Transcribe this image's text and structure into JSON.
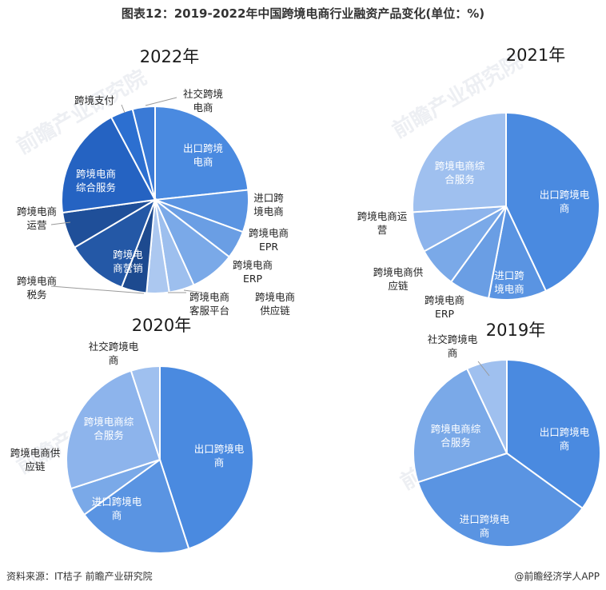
{
  "title": "图表12：2019-2022年中国跨境电商行业融资产品变化(单位：%)",
  "source": "资料来源：IT桔子 前瞻产业研究院",
  "brand": "@前瞻经济学人APP",
  "watermark": "前瞻产业研究院",
  "chart_data": [
    {
      "type": "pie",
      "title": "2022年",
      "slices": [
        {
          "label": [
            "出口跨境",
            "电商"
          ],
          "value": 24,
          "color": "#4a8ae0"
        },
        {
          "label": [
            "进口跨",
            "境电商"
          ],
          "value": 7.5,
          "color": "#5a94e2"
        },
        {
          "label": [
            "跨境电商",
            "EPR"
          ],
          "value": 5,
          "color": "#6a9ee4"
        },
        {
          "label": [
            "跨境电商",
            "ERP"
          ],
          "value": 8,
          "color": "#7aa9e8"
        },
        {
          "label": [
            "跨境电商",
            "供应链"
          ],
          "value": 4.5,
          "color": "#9dbfee"
        },
        {
          "label": [
            "跨境电商",
            "客服平台"
          ],
          "value": 4,
          "color": "#acc8f0"
        },
        {
          "label": [
            "跨境电商",
            "税务"
          ],
          "value": 4.5,
          "color": "#1d4a8f"
        },
        {
          "label": [
            "跨境电",
            "商营销"
          ],
          "value": 11,
          "color": "#2458a6"
        },
        {
          "label": [
            "跨境电商",
            "运营"
          ],
          "value": 6.5,
          "color": "#1f4f99"
        },
        {
          "label": [
            "跨境电商",
            "综合服务"
          ],
          "value": 20,
          "color": "#2563c2"
        },
        {
          "label": [
            "跨境支付"
          ],
          "value": 4,
          "color": "#2c6fd0"
        },
        {
          "label": [
            "社交跨境",
            "电商"
          ],
          "value": 4,
          "color": "#3a7ad6"
        }
      ]
    },
    {
      "type": "pie",
      "title": "2021年",
      "slices": [
        {
          "label": [
            "出口跨境电",
            "商"
          ],
          "value": 43,
          "color": "#4a8ae0"
        },
        {
          "label": [
            "进口跨",
            "境电商"
          ],
          "value": 10,
          "color": "#5a94e2"
        },
        {
          "label": [
            "跨境电商",
            "ERP"
          ],
          "value": 7,
          "color": "#6a9ee4"
        },
        {
          "label": [
            "跨境电商供",
            "应链"
          ],
          "value": 7,
          "color": "#7aa9e8"
        },
        {
          "label": [
            "跨境电商运",
            "营"
          ],
          "value": 7,
          "color": "#8db4ec"
        },
        {
          "label": [
            "跨境电商综",
            "合服务"
          ],
          "value": 26,
          "color": "#9fc0ef"
        }
      ]
    },
    {
      "type": "pie",
      "title": "2020年",
      "slices": [
        {
          "label": [
            "出口跨境电",
            "商"
          ],
          "value": 45,
          "color": "#4a8ae0"
        },
        {
          "label": [
            "进口跨境电",
            "商"
          ],
          "value": 20,
          "color": "#5a94e2"
        },
        {
          "label": [
            "跨境电商供",
            "应链"
          ],
          "value": 5,
          "color": "#7aa9e8"
        },
        {
          "label": [
            "跨境电商综",
            "合服务"
          ],
          "value": 25,
          "color": "#8db4ec"
        },
        {
          "label": [
            "社交跨境电",
            "商"
          ],
          "value": 5,
          "color": "#9fc0ef"
        }
      ]
    },
    {
      "type": "pie",
      "title": "2019年",
      "slices": [
        {
          "label": [
            "出口跨境电",
            "商"
          ],
          "value": 35,
          "color": "#4a8ae0"
        },
        {
          "label": [
            "进口跨境电",
            "商"
          ],
          "value": 35,
          "color": "#5a94e2"
        },
        {
          "label": [
            "跨境电商综",
            "合服务"
          ],
          "value": 23,
          "color": "#7aa9e8"
        },
        {
          "label": [
            "社交跨境电",
            "商"
          ],
          "value": 7,
          "color": "#9fc0ef"
        }
      ]
    }
  ]
}
